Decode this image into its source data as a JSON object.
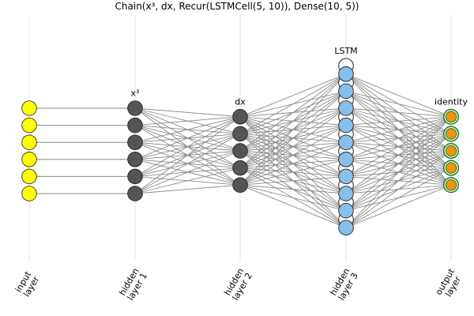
{
  "diagram": {
    "title": "Chain(x³, dx, Recur(LSTMCell(5, 10)), Dense(10, 5))",
    "layers": [
      {
        "axis_label": [
          "input",
          "layer"
        ],
        "name": "",
        "neurons": 6,
        "fill": "#ffff00",
        "stroke": "#333333",
        "ring": ""
      },
      {
        "axis_label": [
          "hidden",
          "layer 1"
        ],
        "name": "x³",
        "neurons": 6,
        "fill": "#555555",
        "stroke": "#222222",
        "ring": ""
      },
      {
        "axis_label": [
          "hidden",
          "layer 2"
        ],
        "name": "dx",
        "neurons": 5,
        "fill": "#555555",
        "stroke": "#222222",
        "ring": ""
      },
      {
        "axis_label": [
          "hidden",
          "layer 3"
        ],
        "name": "LSTM",
        "neurons": 10,
        "fill": "#87bfea",
        "stroke": "#222222",
        "ring": "#222222",
        "recurrent": true
      },
      {
        "axis_label": [
          "output",
          "layer"
        ],
        "name": "identity",
        "neurons": 5,
        "fill": "#f0950f",
        "stroke": "#333333",
        "ring": "#1e7a1e"
      }
    ],
    "connections": [
      {
        "from": 0,
        "to": 1,
        "type": "one-to-one"
      },
      {
        "from": 1,
        "to": 2,
        "type": "dense"
      },
      {
        "from": 2,
        "to": 3,
        "type": "dense"
      },
      {
        "from": 3,
        "to": 4,
        "type": "dense"
      }
    ],
    "colors": {
      "edge": "#8a8a8a",
      "grid": "#e6e6e6"
    }
  }
}
